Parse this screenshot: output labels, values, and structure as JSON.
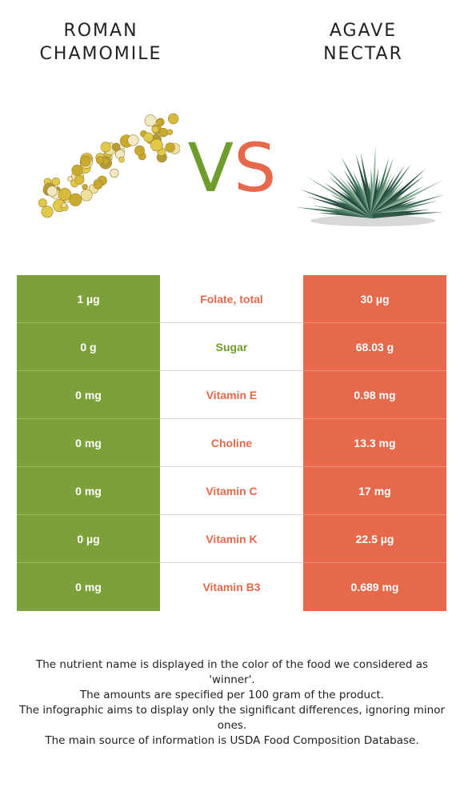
{
  "foods": {
    "left": {
      "title_line1": "ROMAN",
      "title_line2": "CHAMOMILE",
      "image": "chamomile-flowers-image",
      "color": "#7ca13a"
    },
    "right": {
      "title_line1": "AGAVE",
      "title_line2": "NECTAR",
      "image": "agave-plant-image",
      "color": "#e5694a"
    }
  },
  "vs": {
    "v": "V",
    "s": "S"
  },
  "rows": [
    {
      "left": "1 µg",
      "nutrient": "Folate, total",
      "right": "30 µg",
      "winner": "right"
    },
    {
      "left": "0 g",
      "nutrient": "Sugar",
      "right": "68.03 g",
      "winner": "left"
    },
    {
      "left": "0 mg",
      "nutrient": "Vitamin E",
      "right": "0.98 mg",
      "winner": "right"
    },
    {
      "left": "0 mg",
      "nutrient": "Choline",
      "right": "13.3 mg",
      "winner": "right"
    },
    {
      "left": "0 mg",
      "nutrient": "Vitamin C",
      "right": "17 mg",
      "winner": "right"
    },
    {
      "left": "0 µg",
      "nutrient": "Vitamin K",
      "right": "22.5 µg",
      "winner": "right"
    },
    {
      "left": "0 mg",
      "nutrient": "Vitamin B3",
      "right": "0.689 mg",
      "winner": "right"
    }
  ],
  "footer": {
    "line1": "The nutrient name is displayed in the color of the food we considered as 'winner'.",
    "line2": "The amounts are specified per 100 gram of the product.",
    "line3": "The infographic aims to display only the significant differences, ignoring minor ones.",
    "line4": "The main source of information is USDA Food Composition Database."
  }
}
